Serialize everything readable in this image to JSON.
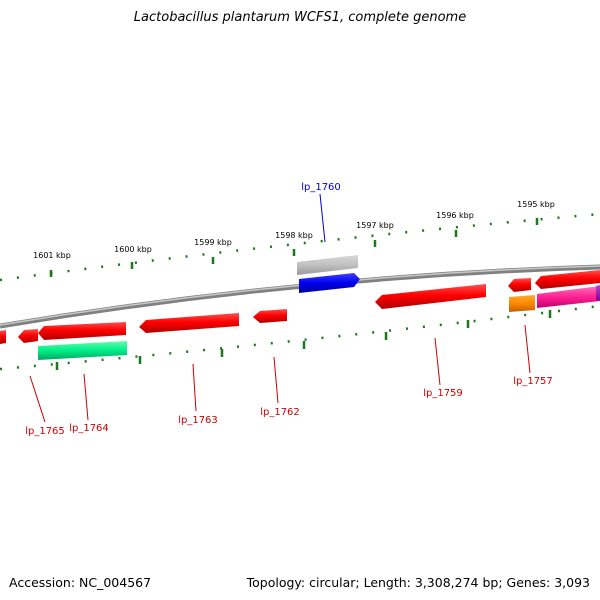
{
  "title": "Lactobacillus plantarum WCFS1, complete genome",
  "accession": "Accession: NC_004567",
  "topology": "Topology: circular; Length: 3,308,274 bp; Genes: 3,093",
  "colors": {
    "backbone": "#808080",
    "tick": "#1a7a1a",
    "label_red": "#cc0000",
    "label_blue": "#0000cc"
  },
  "kbp_labels": [
    "1601 kbp",
    "1600 kbp",
    "1599 kbp",
    "1598 kbp",
    "1597 kbp",
    "1596 kbp",
    "1595 kbp"
  ],
  "gene_labels": [
    "lp_1760",
    "lp_1765",
    "lp_1764",
    "lp_1763",
    "lp_1762",
    "lp_1759",
    "lp_1757"
  ]
}
